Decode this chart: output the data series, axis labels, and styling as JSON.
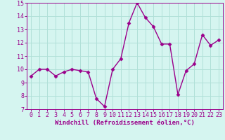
{
  "x": [
    0,
    1,
    2,
    3,
    4,
    5,
    6,
    7,
    8,
    9,
    10,
    11,
    12,
    13,
    14,
    15,
    16,
    17,
    18,
    19,
    20,
    21,
    22,
    23
  ],
  "y": [
    9.5,
    10.0,
    10.0,
    9.5,
    9.8,
    10.0,
    9.9,
    9.8,
    7.8,
    7.2,
    10.0,
    10.8,
    13.5,
    15.0,
    13.9,
    13.2,
    11.9,
    11.9,
    8.1,
    9.9,
    10.4,
    12.6,
    11.8,
    12.2
  ],
  "line_color": "#9b008b",
  "marker": "D",
  "marker_size": 2.5,
  "bg_color": "#d5f5f0",
  "grid_color": "#b0e0d8",
  "xlim": [
    -0.5,
    23.5
  ],
  "ylim": [
    7,
    15
  ],
  "yticks": [
    7,
    8,
    9,
    10,
    11,
    12,
    13,
    14,
    15
  ],
  "xticks": [
    0,
    1,
    2,
    3,
    4,
    5,
    6,
    7,
    8,
    9,
    10,
    11,
    12,
    13,
    14,
    15,
    16,
    17,
    18,
    19,
    20,
    21,
    22,
    23
  ],
  "tick_label_fontsize": 6,
  "xlabel": "Windchill (Refroidissement éolien,°C)",
  "xlabel_fontsize": 6.5,
  "line_width": 1.0
}
